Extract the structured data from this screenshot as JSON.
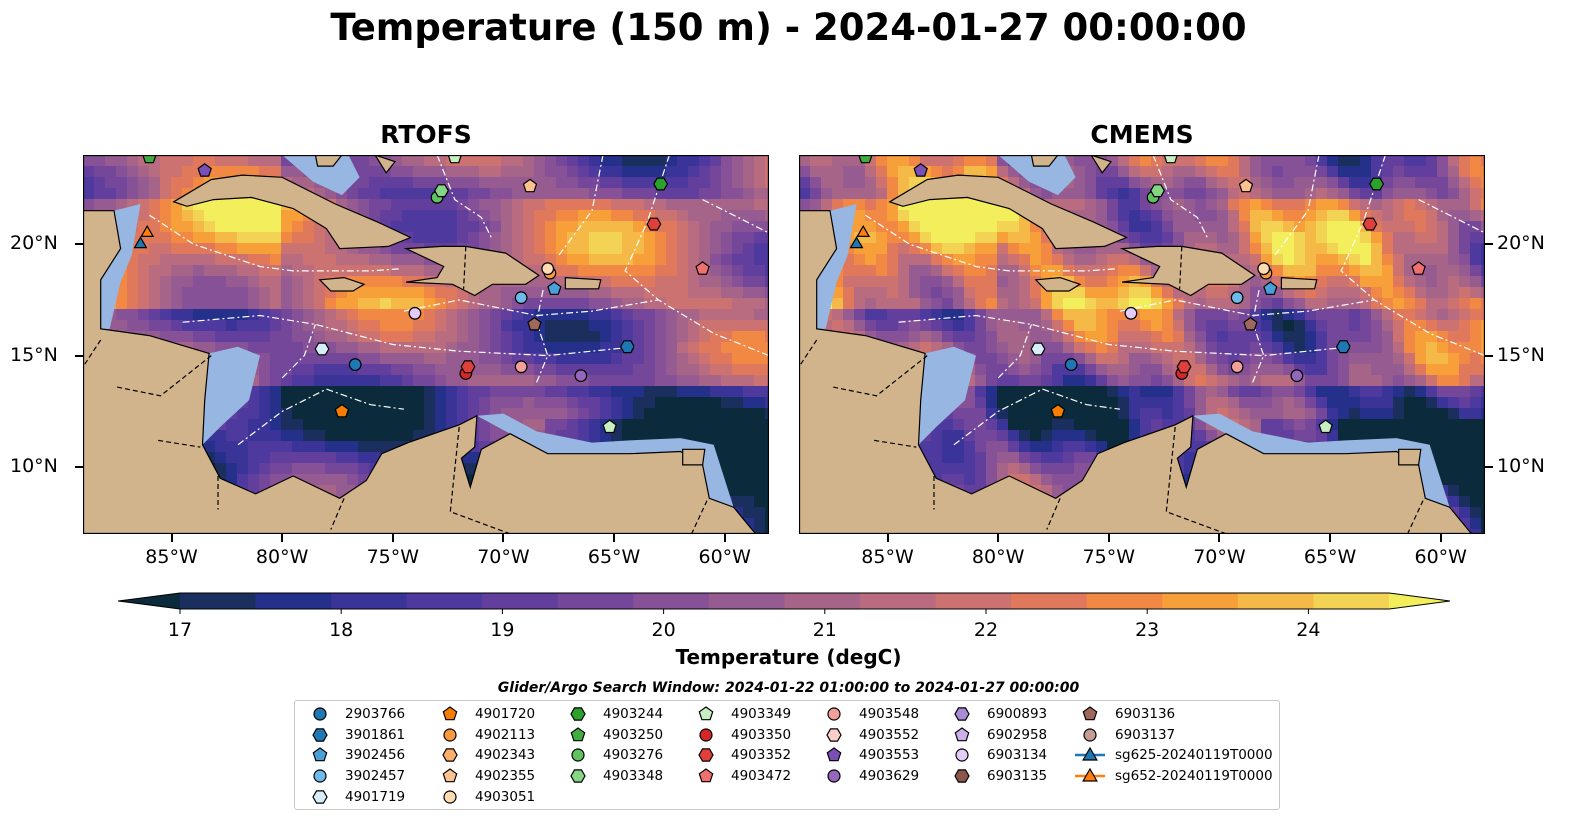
{
  "title": "Temperature (150 m) - 2024-01-27 00:00:00",
  "panels": [
    {
      "title": "RTOFS"
    },
    {
      "title": "CMEMS"
    }
  ],
  "map": {
    "lon_range": [
      -89.0,
      -58.0
    ],
    "lat_range": [
      7.0,
      24.0
    ],
    "lon_ticks": [
      "85°W",
      "80°W",
      "75°W",
      "70°W",
      "65°W",
      "60°W"
    ],
    "lon_tick_values": [
      -85,
      -80,
      -75,
      -70,
      -65,
      -60
    ],
    "lat_ticks": [
      "20°N",
      "15°N",
      "10°N"
    ],
    "lat_tick_values": [
      20,
      15,
      10
    ],
    "colors": {
      "land": "#d2b48c",
      "shallow_water": "#97b6e1",
      "boundaries": "#000000",
      "eez_lines": "#ffffff"
    }
  },
  "colorbar": {
    "label": "Temperature (degC)",
    "ticks": [
      "17",
      "18",
      "19",
      "20",
      "21",
      "22",
      "23",
      "24"
    ],
    "min": 17,
    "max": 24.5,
    "step": 0.5,
    "colors": [
      "#0b2a3b",
      "#1b2f5e",
      "#25308a",
      "#3a3398",
      "#4e3a9f",
      "#623f9d",
      "#75479a",
      "#865197",
      "#965b90",
      "#a66489",
      "#b96b80",
      "#cc7270",
      "#e0795c",
      "#f18844",
      "#f7a03a",
      "#f5b948",
      "#f3d353",
      "#f2ee5c"
    ]
  },
  "search_window": "Glider/Argo Search Window: 2024-01-22 01:00:00 to 2024-01-27 00:00:00",
  "legend": [
    {
      "label": "2903766",
      "marker": "circle",
      "color": "#1f77b4"
    },
    {
      "label": "3901861",
      "marker": "hexagon",
      "color": "#1f77b4"
    },
    {
      "label": "3902456",
      "marker": "pentagon",
      "color": "#4a9fd9"
    },
    {
      "label": "3902457",
      "marker": "circle",
      "color": "#6fbae8"
    },
    {
      "label": "4901719",
      "marker": "hexagon",
      "color": "#d7eef8"
    },
    {
      "label": "4901720",
      "marker": "pentagon",
      "color": "#f57e00"
    },
    {
      "label": "4902113",
      "marker": "circle",
      "color": "#fb9a3c"
    },
    {
      "label": "4902343",
      "marker": "hexagon",
      "color": "#fdae6b"
    },
    {
      "label": "4902355",
      "marker": "pentagon",
      "color": "#fdc28f"
    },
    {
      "label": "4903051",
      "marker": "circle",
      "color": "#fedcb3"
    },
    {
      "label": "4903244",
      "marker": "hexagon",
      "color": "#2ca02c"
    },
    {
      "label": "4903250",
      "marker": "pentagon",
      "color": "#3fae3f"
    },
    {
      "label": "4903276",
      "marker": "circle",
      "color": "#5fc35f"
    },
    {
      "label": "4903348",
      "marker": "hexagon",
      "color": "#84d684"
    },
    {
      "label": "4903349",
      "marker": "pentagon",
      "color": "#c7efc0"
    },
    {
      "label": "4903350",
      "marker": "circle",
      "color": "#d62728"
    },
    {
      "label": "4903352",
      "marker": "hexagon",
      "color": "#e0403c"
    },
    {
      "label": "4903472",
      "marker": "pentagon",
      "color": "#f07070"
    },
    {
      "label": "4903548",
      "marker": "circle",
      "color": "#f4a09a"
    },
    {
      "label": "4903552",
      "marker": "hexagon",
      "color": "#fbd0cb"
    },
    {
      "label": "4903553",
      "marker": "pentagon",
      "color": "#7b4fb8"
    },
    {
      "label": "4903629",
      "marker": "circle",
      "color": "#9467bd"
    },
    {
      "label": "6900893",
      "marker": "hexagon",
      "color": "#a98bd6"
    },
    {
      "label": "6902958",
      "marker": "pentagon",
      "color": "#cbb0ea"
    },
    {
      "label": "6903134",
      "marker": "circle",
      "color": "#e3cdf6"
    },
    {
      "label": "6903135",
      "marker": "hexagon",
      "color": "#8c564b"
    },
    {
      "label": "6903136",
      "marker": "pentagon",
      "color": "#a0675c"
    },
    {
      "label": "6903137",
      "marker": "circle",
      "color": "#c49c94"
    },
    {
      "label": "sg625-20240119T0000",
      "marker": "triangle-line",
      "color": "#1f77b4"
    },
    {
      "label": "sg652-20240119T0000",
      "marker": "triangle-line",
      "color": "#ff7f0e"
    }
  ],
  "observations": [
    {
      "id": "2903766",
      "lon": -76.7,
      "lat": 14.6
    },
    {
      "id": "3901861",
      "lon": -64.4,
      "lat": 15.4
    },
    {
      "id": "3902456",
      "lon": -67.7,
      "lat": 18.0
    },
    {
      "id": "3902457",
      "lon": -69.2,
      "lat": 17.6
    },
    {
      "id": "4901719",
      "lon": -78.2,
      "lat": 15.3
    },
    {
      "id": "4901720",
      "lon": -77.3,
      "lat": 12.5
    },
    {
      "id": "4902113",
      "lon": -67.9,
      "lat": 18.7
    },
    {
      "id": "4902355",
      "lon": -68.8,
      "lat": 22.6
    },
    {
      "id": "4903051",
      "lon": -68.0,
      "lat": 18.9
    },
    {
      "id": "4903244",
      "lon": -62.9,
      "lat": 22.7
    },
    {
      "id": "4903250",
      "lon": -86.0,
      "lat": 23.9
    },
    {
      "id": "4903276",
      "lon": -73.0,
      "lat": 22.1
    },
    {
      "id": "4903348",
      "lon": -72.8,
      "lat": 22.4
    },
    {
      "id": "4903349",
      "lon": -65.2,
      "lat": 11.8
    },
    {
      "id": "4903350",
      "lon": -71.7,
      "lat": 14.2
    },
    {
      "id": "4903352",
      "lon": -71.6,
      "lat": 14.5
    },
    {
      "id": "4903352",
      "lon": -63.2,
      "lat": 20.9
    },
    {
      "id": "4903472",
      "lon": -61.0,
      "lat": 18.9
    },
    {
      "id": "4903548",
      "lon": -69.2,
      "lat": 14.5
    },
    {
      "id": "4903553",
      "lon": -83.5,
      "lat": 23.3
    },
    {
      "id": "4903629",
      "lon": -66.5,
      "lat": 14.1
    },
    {
      "id": "6903134",
      "lon": -74.0,
      "lat": 16.9
    },
    {
      "id": "6903136",
      "lon": -68.6,
      "lat": 16.4
    },
    {
      "id": "4903349",
      "lon": -72.2,
      "lat": 23.9
    },
    {
      "id": "sg625-20240119T0000",
      "lon": -86.4,
      "lat": 20.0
    },
    {
      "id": "sg652-20240119T0000",
      "lon": -86.1,
      "lat": 20.5
    }
  ]
}
